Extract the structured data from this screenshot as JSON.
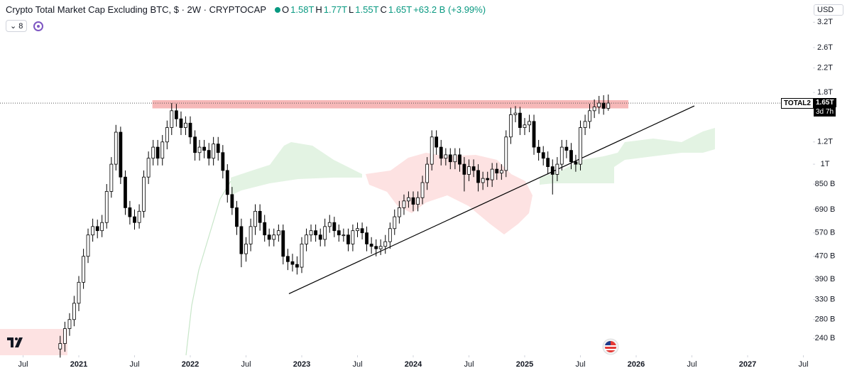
{
  "chart_data": {
    "type": "candlestick",
    "title": "Crypto Total Market Cap Excluding BTC, $ · 2W · CRYPTOCAP",
    "ohlc_labels": [
      "O",
      "H",
      "L",
      "C"
    ],
    "ohlc_values": [
      "1.58T",
      "1.77T",
      "1.55T",
      "1.65T"
    ],
    "change": "+63.2 B (+3.99%)",
    "indicator_count": "8",
    "currency": "USD",
    "symbol": "TOTAL2",
    "last_price_label": "1.65T",
    "countdown": "3d 7h",
    "log_scale": true,
    "up_color": "#ffffff",
    "down_color": "#000000",
    "outline_color": "#000000",
    "xlim": [
      2020.293,
      2027.586
    ],
    "ylim": [
      209,
      3840
    ],
    "xticks": [
      {
        "value": 2020.5,
        "label": "Jul"
      },
      2021,
      {
        "value": 2021.5,
        "label": "Jul"
      },
      2022,
      {
        "value": 2022.5,
        "label": "Jul"
      },
      2023,
      {
        "value": 2023.5,
        "label": "Jul"
      },
      2024,
      {
        "value": 2024.5,
        "label": "Jul"
      },
      2025,
      {
        "value": 2025.5,
        "label": "Jul"
      },
      2026,
      {
        "value": 2026.5,
        "label": "Jul"
      },
      2027,
      {
        "value": 2027.5,
        "label": "Jul"
      }
    ],
    "yticks": [
      {
        "value": 240,
        "label": "240 B"
      },
      {
        "value": 280,
        "label": "280 B"
      },
      {
        "value": 330,
        "label": "330 B"
      },
      {
        "value": 390,
        "label": "390 B"
      },
      {
        "value": 470,
        "label": "470 B"
      },
      {
        "value": 570,
        "label": "570 B"
      },
      {
        "value": 690,
        "label": "690 B"
      },
      {
        "value": 850,
        "label": "850 B"
      },
      {
        "value": 1000,
        "label": "1T"
      },
      {
        "value": 1200,
        "label": "1.2T"
      },
      {
        "value": 1800,
        "label": "1.8T"
      },
      {
        "value": 2200,
        "label": "2.2T"
      },
      {
        "value": 2600,
        "label": "2.6T"
      },
      {
        "value": 3200,
        "label": "3.2T"
      }
    ],
    "resistance_zone": {
      "from": 2021.66,
      "to": 2025.93,
      "low": 1580,
      "high": 1690,
      "color": "#f4a6a6"
    },
    "trendline": {
      "x": [
        2022.885,
        2026.522
      ],
      "values": [
        346,
        1612
      ],
      "color": "#000000"
    },
    "x": [
      2020.833,
      2020.875,
      2020.917,
      2020.958,
      2021.0,
      2021.042,
      2021.083,
      2021.125,
      2021.167,
      2021.208,
      2021.25,
      2021.292,
      2021.333,
      2021.375,
      2021.417,
      2021.458,
      2021.5,
      2021.542,
      2021.583,
      2021.625,
      2021.667,
      2021.708,
      2021.75,
      2021.792,
      2021.833,
      2021.875,
      2021.917,
      2021.958,
      2022.0,
      2022.042,
      2022.083,
      2022.125,
      2022.167,
      2022.208,
      2022.25,
      2022.292,
      2022.333,
      2022.375,
      2022.417,
      2022.458,
      2022.5,
      2022.542,
      2022.583,
      2022.625,
      2022.667,
      2022.708,
      2022.75,
      2022.792,
      2022.833,
      2022.875,
      2022.917,
      2022.958,
      2023.0,
      2023.042,
      2023.083,
      2023.125,
      2023.167,
      2023.208,
      2023.25,
      2023.292,
      2023.333,
      2023.375,
      2023.417,
      2023.458,
      2023.5,
      2023.542,
      2023.583,
      2023.625,
      2023.667,
      2023.708,
      2023.75,
      2023.792,
      2023.833,
      2023.875,
      2023.917,
      2023.958,
      2024.0,
      2024.042,
      2024.083,
      2024.125,
      2024.167,
      2024.208,
      2024.25,
      2024.292,
      2024.333,
      2024.375,
      2024.417,
      2024.458,
      2024.5,
      2024.542,
      2024.583,
      2024.625,
      2024.667,
      2024.708,
      2024.75,
      2024.792,
      2024.833,
      2024.875,
      2024.917,
      2024.958,
      2025.0,
      2025.042,
      2025.083,
      2025.125,
      2025.167,
      2025.208,
      2025.25,
      2025.292,
      2025.333,
      2025.375,
      2025.417,
      2025.458,
      2025.5,
      2025.542,
      2025.583,
      2025.625,
      2025.667,
      2025.708,
      2025.75
    ],
    "open": [
      220,
      230,
      260,
      280,
      320,
      380,
      470,
      560,
      600,
      580,
      620,
      800,
      1000,
      1300,
      900,
      700,
      650,
      620,
      680,
      900,
      1050,
      1150,
      1050,
      1200,
      1350,
      1550,
      1450,
      1350,
      1400,
      1250,
      1100,
      1150,
      1120,
      1050,
      1180,
      1100,
      950,
      780,
      700,
      600,
      480,
      520,
      600,
      680,
      620,
      560,
      540,
      560,
      580,
      470,
      450,
      440,
      430,
      520,
      560,
      580,
      560,
      540,
      600,
      620,
      580,
      560,
      560,
      520,
      580,
      590,
      570,
      520,
      510,
      500,
      510,
      530,
      590,
      650,
      700,
      740,
      760,
      720,
      760,
      860,
      1000,
      1250,
      1150,
      1050,
      1080,
      1020,
      1080,
      1000,
      920,
      980,
      950,
      860,
      890,
      880,
      960,
      930,
      950,
      1250,
      1500,
      1520,
      1350,
      1380,
      1420,
      1150,
      1100,
      1050,
      980,
      920,
      1000,
      1150,
      1120,
      1020,
      1000,
      1350,
      1420,
      1550,
      1600,
      1650,
      1580
    ],
    "high": [
      245,
      275,
      295,
      340,
      400,
      500,
      590,
      640,
      635,
      660,
      850,
      1060,
      1380,
      1360,
      950,
      740,
      690,
      720,
      950,
      1110,
      1220,
      1220,
      1270,
      1430,
      1650,
      1640,
      1540,
      1480,
      1480,
      1320,
      1220,
      1220,
      1190,
      1250,
      1250,
      1170,
      1000,
      830,
      740,
      640,
      550,
      640,
      720,
      720,
      660,
      590,
      590,
      610,
      610,
      500,
      480,
      470,
      550,
      590,
      610,
      610,
      590,
      640,
      660,
      650,
      610,
      590,
      590,
      610,
      620,
      620,
      600,
      550,
      540,
      540,
      560,
      620,
      690,
      740,
      780,
      800,
      800,
      800,
      910,
      1060,
      1320,
      1320,
      1220,
      1140,
      1140,
      1140,
      1140,
      1060,
      1040,
      1040,
      1000,
      940,
      940,
      1010,
      1010,
      1000,
      1320,
      1590,
      1610,
      1600,
      1460,
      1500,
      1500,
      1220,
      1160,
      1110,
      1040,
      1060,
      1220,
      1220,
      1190,
      1080,
      1430,
      1500,
      1640,
      1700,
      1750,
      1760,
      1770
    ],
    "low": [
      205,
      215,
      245,
      265,
      300,
      360,
      445,
      530,
      545,
      550,
      590,
      760,
      950,
      850,
      660,
      610,
      585,
      590,
      645,
      850,
      990,
      990,
      990,
      1130,
      1270,
      1360,
      1270,
      1270,
      1180,
      1030,
      1030,
      1050,
      990,
      990,
      1030,
      890,
      730,
      660,
      560,
      430,
      450,
      490,
      560,
      580,
      530,
      510,
      510,
      530,
      440,
      420,
      415,
      405,
      410,
      490,
      530,
      530,
      510,
      510,
      570,
      550,
      530,
      530,
      490,
      490,
      550,
      540,
      490,
      480,
      470,
      475,
      480,
      500,
      560,
      615,
      660,
      700,
      680,
      680,
      720,
      810,
      950,
      1080,
      990,
      990,
      960,
      960,
      940,
      800,
      870,
      900,
      800,
      810,
      830,
      830,
      880,
      880,
      900,
      1180,
      1410,
      1270,
      1270,
      1300,
      1080,
      1030,
      990,
      920,
      780,
      870,
      950,
      1050,
      960,
      940,
      950,
      1270,
      1340,
      1460,
      1510,
      1500,
      1550
    ],
    "close": [
      230,
      260,
      280,
      320,
      380,
      470,
      560,
      600,
      580,
      620,
      800,
      1000,
      1300,
      900,
      700,
      650,
      620,
      680,
      900,
      1050,
      1150,
      1050,
      1200,
      1350,
      1550,
      1450,
      1350,
      1400,
      1250,
      1100,
      1150,
      1120,
      1050,
      1180,
      1100,
      950,
      780,
      700,
      600,
      480,
      520,
      600,
      680,
      620,
      560,
      540,
      560,
      580,
      470,
      450,
      440,
      430,
      520,
      560,
      580,
      560,
      540,
      600,
      620,
      580,
      560,
      560,
      520,
      580,
      590,
      570,
      520,
      510,
      500,
      510,
      530,
      590,
      650,
      700,
      740,
      760,
      720,
      760,
      860,
      1000,
      1250,
      1150,
      1050,
      1080,
      1020,
      1080,
      1000,
      920,
      980,
      950,
      860,
      890,
      880,
      960,
      930,
      950,
      1250,
      1500,
      1520,
      1350,
      1380,
      1420,
      1150,
      1100,
      1050,
      980,
      920,
      1000,
      1150,
      1120,
      1020,
      1000,
      1350,
      1420,
      1550,
      1600,
      1650,
      1580,
      1650
    ]
  }
}
